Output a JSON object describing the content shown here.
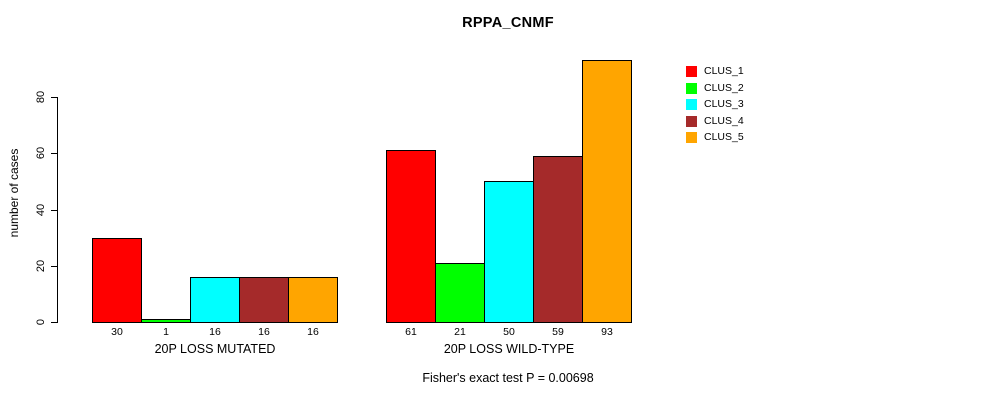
{
  "title": "RPPA_CNMF",
  "ylabel": "number of cases",
  "caption": "Fisher's exact test P = 0.00698",
  "legend": {
    "items": [
      {
        "label": "CLUS_1",
        "color": "#FF0000"
      },
      {
        "label": "CLUS_2",
        "color": "#00FF00"
      },
      {
        "label": "CLUS_3",
        "color": "#00FFFF"
      },
      {
        "label": "CLUS_4",
        "color": "#A52A2A"
      },
      {
        "label": "CLUS_5",
        "color": "#FFA500"
      }
    ]
  },
  "chart_data": {
    "type": "bar",
    "title": "RPPA_CNMF",
    "xlabel": "",
    "ylabel": "number of cases",
    "categories": [
      "20P LOSS MUTATED",
      "20P LOSS WILD-TYPE"
    ],
    "series": [
      {
        "name": "CLUS_1",
        "color": "#FF0000",
        "values": [
          30,
          61
        ]
      },
      {
        "name": "CLUS_2",
        "color": "#00FF00",
        "values": [
          1,
          21
        ]
      },
      {
        "name": "CLUS_3",
        "color": "#00FFFF",
        "values": [
          16,
          50
        ]
      },
      {
        "name": "CLUS_4",
        "color": "#A52A2A",
        "values": [
          16,
          59
        ]
      },
      {
        "name": "CLUS_5",
        "color": "#FFA500",
        "values": [
          16,
          93
        ]
      }
    ],
    "yticks": [
      0,
      20,
      40,
      60,
      80
    ],
    "ylim": [
      0,
      80
    ],
    "grid": false,
    "bar_value_labels_shown": true,
    "legend_position": "right",
    "annotation": "Fisher's exact test P = 0.00698"
  }
}
